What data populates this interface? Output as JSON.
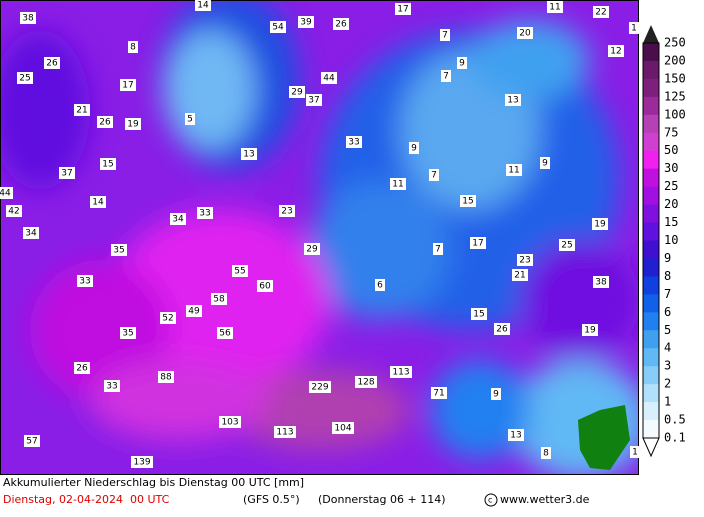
{
  "map": {
    "labels": [
      "38",
      "14",
      "54",
      "39",
      "26",
      "17",
      "11",
      "22",
      "1",
      "7",
      "20",
      "12",
      "26",
      "8",
      "9",
      "25",
      "17",
      "44",
      "29",
      "37",
      "7",
      "13",
      "21",
      "26",
      "19",
      "5",
      "33",
      "9",
      "13",
      "15",
      "11",
      "9",
      "37",
      "7",
      "11",
      "44",
      "14",
      "42",
      "34",
      "33",
      "23",
      "15",
      "19",
      "34",
      "35",
      "29",
      "7",
      "17",
      "25",
      "23",
      "55",
      "21",
      "33",
      "60",
      "6",
      "38",
      "58",
      "49",
      "52",
      "15",
      "26",
      "19",
      "35",
      "56",
      "26",
      "113",
      "88",
      "128",
      "33",
      "229",
      "71",
      "9",
      "103",
      "104",
      "113",
      "13",
      "57",
      "8",
      "139",
      "1"
    ]
  },
  "legend": {
    "labels": [
      "250",
      "200",
      "150",
      "125",
      "100",
      "75",
      "50",
      "30",
      "25",
      "20",
      "15",
      "10",
      "9",
      "8",
      "7",
      "6",
      "5",
      "4",
      "3",
      "2",
      "1",
      "0.5",
      "0.1"
    ]
  },
  "footer": {
    "caption": "Akkumulierter Niederschlag bis Dienstag 00 UTC [mm]",
    "date": "Dienstag, 02-04-2024  00 UTC",
    "model": "(GFS 0.5°)",
    "run": "(Donnerstag 06 + 114)",
    "credit": "www.wetter3.de"
  }
}
